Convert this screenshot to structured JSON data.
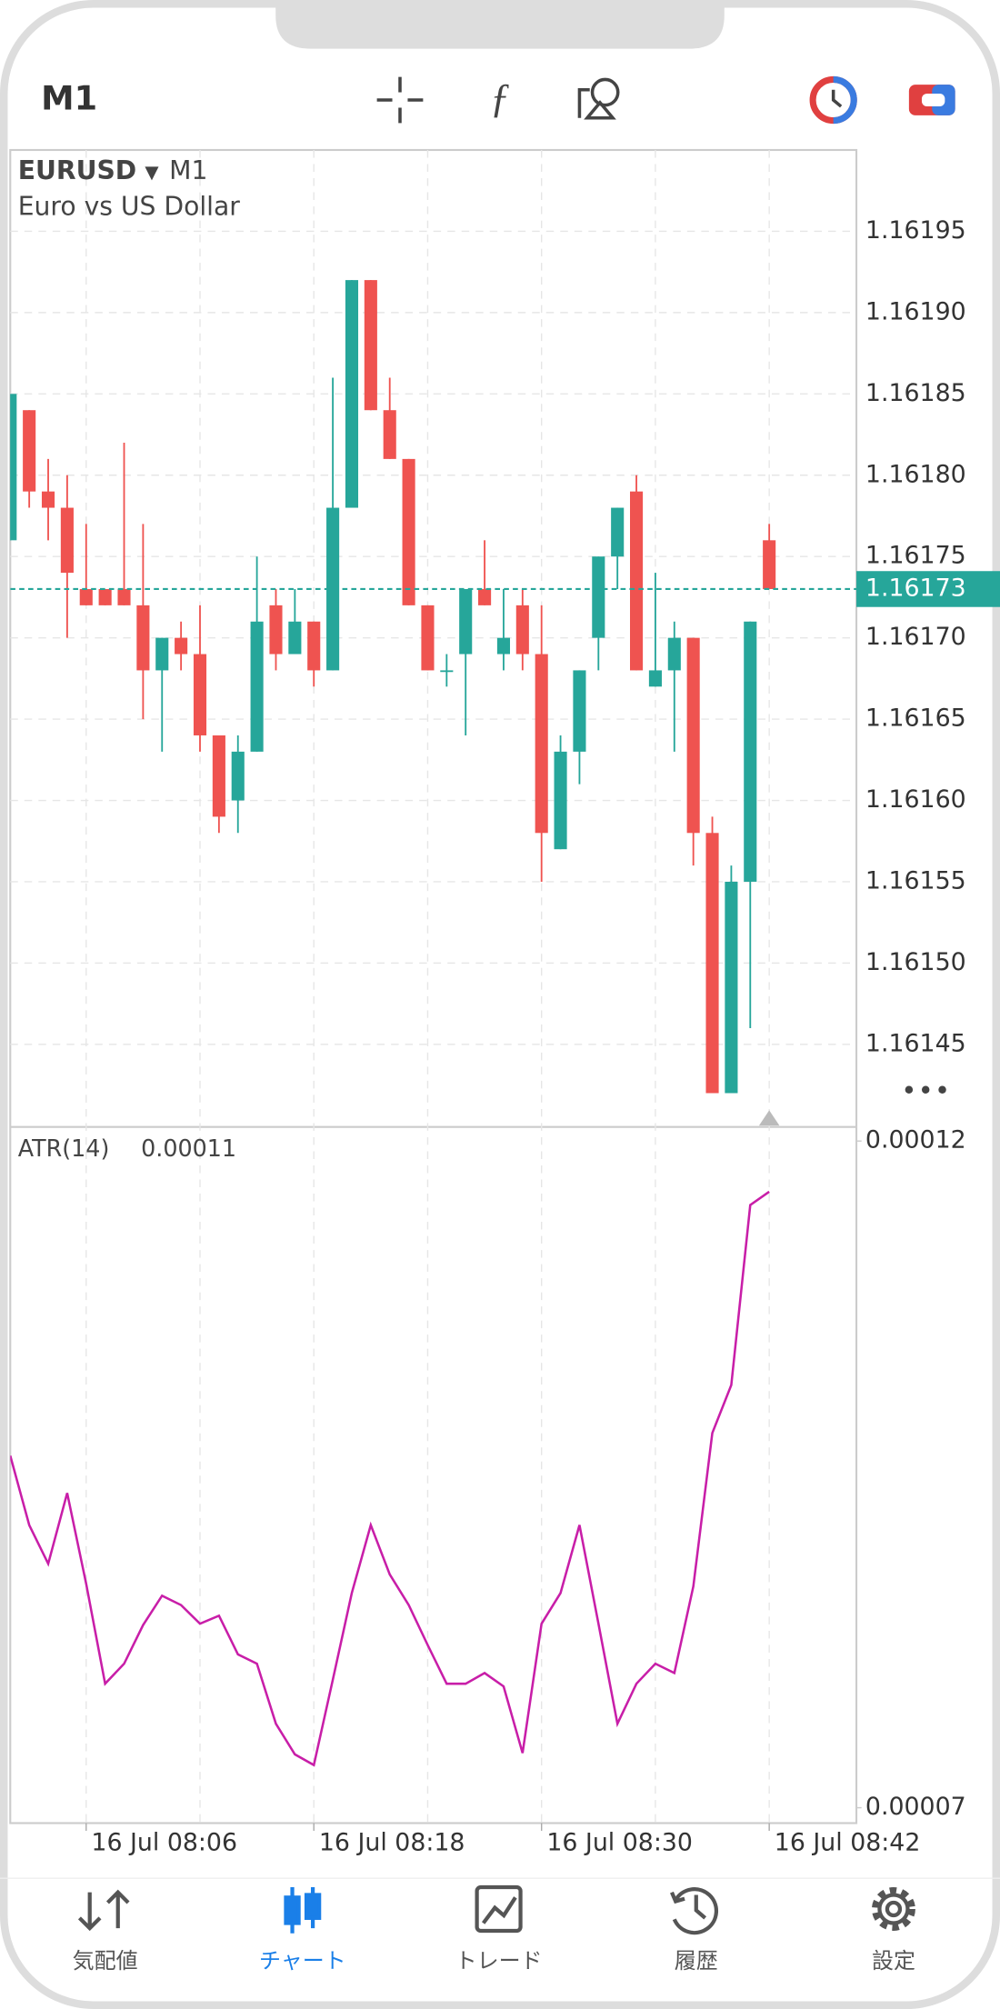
{
  "header": {
    "timeframe": "M1"
  },
  "chart_data": [
    {
      "type": "candlestick",
      "symbol": "EURUSD",
      "timeframe": "M1",
      "description": "Euro vs US Dollar",
      "categories": [
        null,
        null,
        null,
        null,
        "16 Jul 08:06",
        null,
        null,
        null,
        null,
        null,
        null,
        null,
        null,
        null,
        null,
        null,
        "16 Jul 08:18",
        null,
        null,
        null,
        null,
        null,
        null,
        null,
        null,
        null,
        null,
        null,
        "16 Jul 08:30",
        null,
        null,
        null,
        null,
        null,
        null,
        null,
        null,
        null,
        null,
        null,
        "16 Jul 08:42"
      ],
      "open": [
        1.16176,
        1.16184,
        1.16179,
        1.16178,
        1.16173,
        1.16173,
        1.16173,
        1.16172,
        1.16168,
        1.1617,
        1.16169,
        1.16164,
        1.1616,
        1.16163,
        1.16172,
        1.16169,
        1.16171,
        1.16168,
        1.16178,
        1.16192,
        1.16184,
        1.16181,
        1.16172,
        1.16168,
        1.16169,
        1.16173,
        1.16169,
        1.16172,
        1.16169,
        1.16157,
        1.16163,
        1.1617,
        1.16175,
        1.16179,
        1.16167,
        1.16168,
        1.1617,
        1.16158,
        1.16142,
        1.16155,
        1.16176
      ],
      "high": [
        1.16185,
        1.16184,
        1.16181,
        1.1618,
        1.16177,
        1.16173,
        1.16182,
        1.16177,
        1.1617,
        1.16171,
        1.16172,
        1.16164,
        1.16164,
        1.16175,
        1.16173,
        1.16173,
        1.16171,
        1.16186,
        1.16192,
        1.16192,
        1.16186,
        1.16181,
        1.16172,
        1.16169,
        1.16173,
        1.16176,
        1.16173,
        1.16173,
        1.16172,
        1.16164,
        1.16168,
        1.16175,
        1.16178,
        1.1618,
        1.16174,
        1.16171,
        1.1617,
        1.16159,
        1.16156,
        1.16171,
        1.16177
      ],
      "low": [
        1.16176,
        1.16178,
        1.16176,
        1.1617,
        1.16172,
        1.16172,
        1.16172,
        1.16165,
        1.16163,
        1.16168,
        1.16163,
        1.16158,
        1.16158,
        1.16163,
        1.16168,
        1.16169,
        1.16167,
        1.16168,
        1.16178,
        1.16184,
        1.16181,
        1.16172,
        1.16168,
        1.16167,
        1.16164,
        1.16172,
        1.16168,
        1.16168,
        1.16155,
        1.16157,
        1.16161,
        1.16168,
        1.16173,
        1.16168,
        1.16167,
        1.16163,
        1.16156,
        1.16142,
        1.16142,
        1.16146,
        1.16173
      ],
      "close": [
        1.16185,
        1.16179,
        1.16178,
        1.16174,
        1.16172,
        1.16172,
        1.16172,
        1.16168,
        1.1617,
        1.16169,
        1.16164,
        1.16159,
        1.16163,
        1.16171,
        1.16169,
        1.16171,
        1.16168,
        1.16178,
        1.16192,
        1.16184,
        1.16181,
        1.16172,
        1.16168,
        1.16168,
        1.16173,
        1.16172,
        1.1617,
        1.16169,
        1.16158,
        1.16163,
        1.16168,
        1.16175,
        1.16178,
        1.16168,
        1.16168,
        1.1617,
        1.16158,
        1.16142,
        1.16155,
        1.16171,
        1.16173
      ],
      "up_color": "#26a69a",
      "down_color": "#ef5350",
      "ylim": [
        1.1614,
        1.162
      ],
      "yticks": [
        1.16145,
        {
          "value": 1.1615,
          "label": "1.16150"
        },
        1.16155,
        {
          "value": 1.1616,
          "label": "1.16160"
        },
        1.16165,
        {
          "value": 1.1617,
          "label": "1.16170"
        },
        1.16175,
        {
          "value": 1.1618,
          "label": "1.16180"
        },
        1.16185,
        {
          "value": 1.1619,
          "label": "1.16190"
        },
        1.16195
      ],
      "current_price": 1.16173,
      "grid": true
    },
    {
      "type": "line",
      "title": "ATR(14)",
      "indicator_value": "0.00011",
      "color": "#c81ea8",
      "values": [
        9.64e-05,
        9.12e-05,
        8.83e-05,
        9.36e-05,
        8.68e-05,
        7.93e-05,
        8.08e-05,
        8.37e-05,
        8.59e-05,
        8.52e-05,
        8.38e-05,
        8.44e-05,
        8.15e-05,
        8.08e-05,
        7.63e-05,
        7.4e-05,
        7.32e-05,
        7.96e-05,
        8.61e-05,
        9.12e-05,
        8.75e-05,
        8.52e-05,
        8.22e-05,
        7.93e-05,
        7.93e-05,
        8.01e-05,
        7.91e-05,
        7.41e-05,
        8.38e-05,
        8.61e-05,
        9.12e-05,
        8.38e-05,
        7.63e-05,
        7.93e-05,
        8.08e-05,
        8.01e-05,
        8.66e-05,
        9.81e-05,
        0.0001017,
        0.0001152,
        0.0001162
      ],
      "ylim": [
        7e-05,
        0.00012
      ],
      "yticks": [
        7e-05,
        0.00012
      ]
    }
  ],
  "tabs": [
    {
      "label": "気配値"
    },
    {
      "label": "チャート"
    },
    {
      "label": "トレード"
    },
    {
      "label": "履歴"
    },
    {
      "label": "設定"
    }
  ],
  "active_tab": 1
}
